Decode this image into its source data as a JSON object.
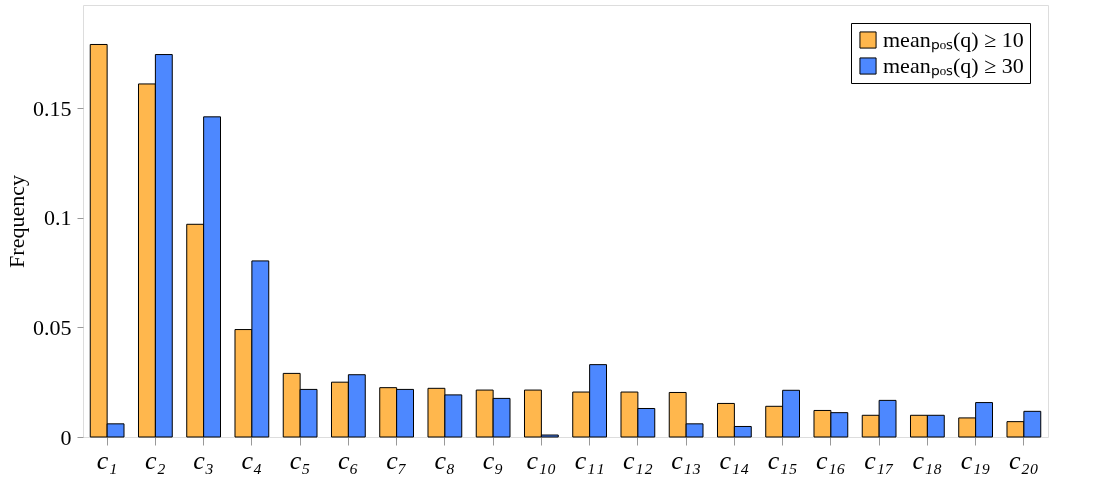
{
  "chart_data": {
    "type": "bar",
    "ylabel": "Frequency",
    "categories": [
      "c₁",
      "c₂",
      "c₃",
      "c₄",
      "c₅",
      "c₆",
      "c₇",
      "c₈",
      "c₉",
      "c₁₀",
      "c₁₁",
      "c₁₂",
      "c₁₃",
      "c₁₄",
      "c₁₅",
      "c₁₆",
      "c₁₇",
      "c₁₈",
      "c₁₉",
      "c₂₀"
    ],
    "series": [
      {
        "name": "meanₚₒₛ(q) ≥ 10",
        "color": "#ffb74d",
        "values": [
          0.179,
          0.161,
          0.097,
          0.049,
          0.029,
          0.025,
          0.0225,
          0.0222,
          0.0214,
          0.0214,
          0.0205,
          0.0205,
          0.0203,
          0.0153,
          0.014,
          0.0121,
          0.0099,
          0.0099,
          0.0087,
          0.007
        ]
      },
      {
        "name": "meanₚₒₛ(q) ≥ 30",
        "color": "#4d88ff",
        "values": [
          0.006,
          0.1744,
          0.146,
          0.0803,
          0.0217,
          0.0284,
          0.0217,
          0.0192,
          0.0176,
          0.0009,
          0.033,
          0.013,
          0.006,
          0.0048,
          0.0213,
          0.0111,
          0.0167,
          0.0099,
          0.0157,
          0.0117
        ]
      }
    ],
    "ylim": [
      0,
      0.197
    ],
    "yticks": [
      0,
      0.05,
      0.1,
      0.15
    ],
    "grid": false,
    "legend": "top right"
  }
}
